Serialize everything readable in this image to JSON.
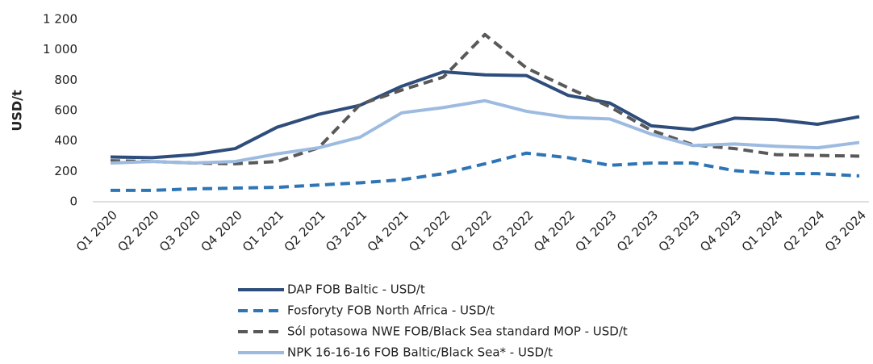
{
  "chart_data": {
    "type": "line",
    "y_label": "USD/t",
    "categories": [
      "Q1 2020",
      "Q2 2020",
      "Q3 2020",
      "Q4 2020",
      "Q1 2021",
      "Q2 2021",
      "Q3 2021",
      "Q4 2021",
      "Q1 2022",
      "Q2 2022",
      "Q3 2022",
      "Q4 2022",
      "Q1 2023",
      "Q2 2023",
      "Q3 2023",
      "Q4 2023",
      "Q1 2024",
      "Q2 2024",
      "Q3 2024"
    ],
    "series": [
      {
        "name": "DAP FOB Baltic - USD/t",
        "color": "#2e4d7b",
        "dashed": false,
        "values": [
          295,
          290,
          310,
          350,
          490,
          575,
          635,
          760,
          855,
          835,
          830,
          700,
          650,
          500,
          475,
          550,
          540,
          510,
          560
        ]
      },
      {
        "name": "Fosforyty FOB North Africa - USD/t",
        "color": "#2e75b6",
        "dashed": true,
        "values": [
          75,
          75,
          85,
          90,
          95,
          110,
          125,
          145,
          185,
          250,
          320,
          290,
          240,
          255,
          255,
          205,
          185,
          185,
          170
        ]
      },
      {
        "name": "Sól potasowa NWE FOB/Black Sea standard MOP - USD/t",
        "color": "#595959",
        "dashed": true,
        "values": [
          270,
          265,
          255,
          250,
          265,
          355,
          640,
          735,
          820,
          1100,
          880,
          750,
          625,
          470,
          375,
          350,
          310,
          305,
          300
        ]
      },
      {
        "name": "NPK 16-16-16 FOB Baltic/Black Sea* - USD/t",
        "color": "#9dbbe0",
        "dashed": false,
        "values": [
          255,
          265,
          255,
          265,
          315,
          355,
          425,
          585,
          620,
          665,
          595,
          555,
          545,
          445,
          370,
          380,
          365,
          355,
          390
        ]
      }
    ],
    "ylim": [
      0,
      1200
    ],
    "yticks": [
      0,
      200,
      400,
      600,
      800,
      {
        "value": 1000,
        "label": "1 000"
      },
      {
        "value": 1200,
        "label": "1 200"
      }
    ],
    "grid": false,
    "legend": "bottom"
  }
}
